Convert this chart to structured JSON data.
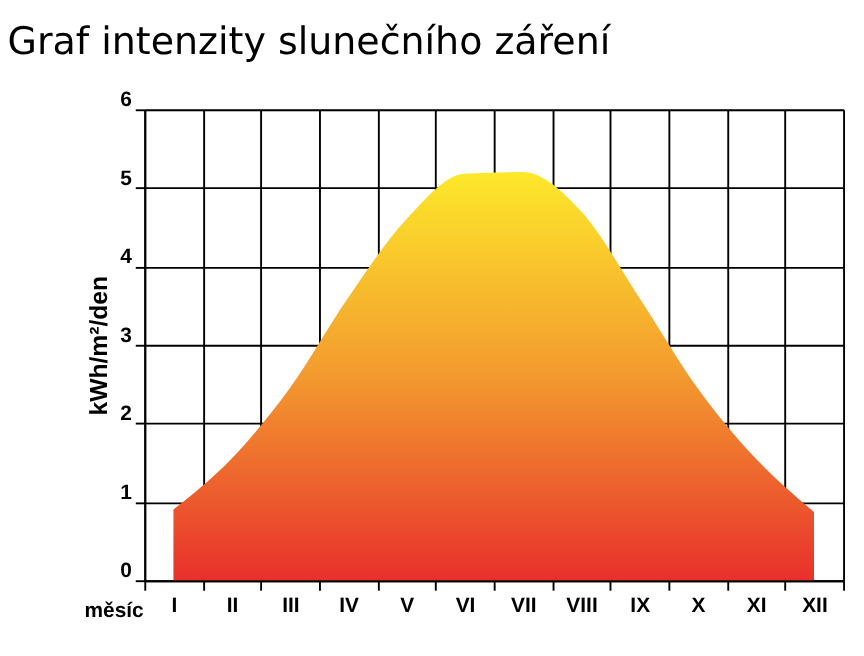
{
  "chart_data": {
    "type": "area",
    "title": "Graf intenzity slunečního záření",
    "xlabel": "měsíc",
    "ylabel": "kWh/m²/den",
    "categories": [
      "I",
      "II",
      "III",
      "IV",
      "V",
      "VI",
      "VII",
      "VIII",
      "IX",
      "X",
      "XI",
      "XII"
    ],
    "series": [
      {
        "color": "#f39a2f",
        "values": [
          0.9,
          1.55,
          2.45,
          3.6,
          4.6,
          5.18,
          5.2,
          4.7,
          3.6,
          2.45,
          1.55,
          0.87
        ]
      }
    ],
    "ylim": [
      0,
      6
    ],
    "yticks": [
      0,
      1,
      2,
      3,
      4,
      5,
      6
    ],
    "grid": true
  }
}
